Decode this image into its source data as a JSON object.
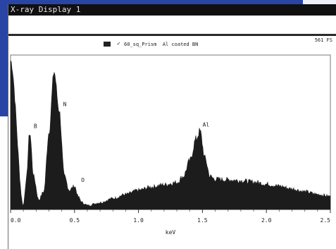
{
  "window": {
    "title": "X-ray Display 1"
  },
  "header": {
    "full_scale": "561 FS",
    "legend_check": "✓",
    "legend_label": "60_sq_Prism  Al coated BN"
  },
  "colors": {
    "background_blue": "#2a44a6",
    "spectrum": "#1c1c1c",
    "titlebar": "#101010"
  },
  "chart_data": {
    "type": "area",
    "title": "",
    "xlabel": "keV",
    "ylabel": "",
    "xlim": [
      0.0,
      2.5
    ],
    "ylim": [
      0,
      561
    ],
    "xticks": [
      "0.0",
      "0.5",
      "1.0",
      "1.5",
      "2.0",
      "2.5"
    ],
    "grid": false,
    "legend_position": "top",
    "series": [
      {
        "name": "60_sq_Prism  Al coated BN",
        "x": [
          0.0,
          0.1,
          0.12,
          0.15,
          0.18,
          0.22,
          0.26,
          0.3,
          0.34,
          0.38,
          0.42,
          0.46,
          0.5,
          0.53,
          0.56,
          0.6,
          0.7,
          0.8,
          0.9,
          1.0,
          1.1,
          1.2,
          1.3,
          1.35,
          1.4,
          1.45,
          1.48,
          1.52,
          1.56,
          1.6,
          1.7,
          1.8,
          1.9,
          2.0,
          2.1,
          2.2,
          2.3,
          2.4,
          2.5
        ],
        "y": [
          540,
          15,
          95,
          280,
          120,
          35,
          65,
          280,
          500,
          360,
          120,
          70,
          85,
          45,
          25,
          15,
          25,
          40,
          55,
          70,
          82,
          90,
          98,
          120,
          175,
          255,
          285,
          185,
          120,
          110,
          108,
          105,
          100,
          92,
          85,
          75,
          65,
          55,
          48
        ]
      }
    ],
    "annotations": [
      {
        "label": "B",
        "x": 0.17
      },
      {
        "label": "N",
        "x": 0.4
      },
      {
        "label": "O",
        "x": 0.54
      },
      {
        "label": "Al",
        "x": 1.49
      }
    ]
  }
}
